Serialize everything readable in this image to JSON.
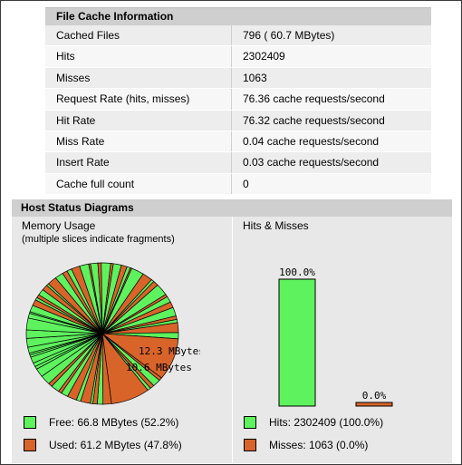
{
  "cache_info": {
    "title": "File Cache Information",
    "rows": [
      {
        "label": "Cached Files",
        "value": "796 ( 60.7 MBytes)"
      },
      {
        "label": "Hits",
        "value": "2302409"
      },
      {
        "label": "Misses",
        "value": "1063"
      },
      {
        "label": "Request Rate (hits, misses)",
        "value": "76.36 cache requests/second"
      },
      {
        "label": "Hit Rate",
        "value": "76.32 cache requests/second"
      },
      {
        "label": "Miss Rate",
        "value": "0.04 cache requests/second"
      },
      {
        "label": "Insert Rate",
        "value": "0.03 cache requests/second"
      },
      {
        "label": "Cache full count",
        "value": "0"
      }
    ]
  },
  "host_status": {
    "title": "Host Status Diagrams",
    "memory": {
      "title": "Memory Usage",
      "subtitle": "(multiple slices indicate fragments)",
      "label_large_1": "12.3 MBytes",
      "label_large_2": "10.6 MBytes",
      "legend_free": "Free: 66.8 MBytes (52.2%)",
      "legend_used": "Used: 61.2 MBytes (47.8%)",
      "colors": {
        "free": "#5ef25e",
        "used": "#d8642a"
      }
    },
    "hits_misses": {
      "title": "Hits & Misses",
      "legend_hits": "Hits: 2302409 (100.0%)",
      "legend_misses": "Misses: 1063 (0.0%)"
    }
  },
  "chart_data": [
    {
      "type": "pie",
      "title": "Memory Usage",
      "slices": [
        {
          "name": "Free",
          "value": 66.8,
          "percent": 52.2
        },
        {
          "name": "Used",
          "value": 61.2,
          "percent": 47.8
        }
      ],
      "labels": [
        "12.3 MBytes",
        "10.6 MBytes"
      ]
    },
    {
      "type": "bar",
      "title": "Hits & Misses",
      "categories": [
        "Hits",
        "Misses"
      ],
      "values": [
        100.0,
        0.0
      ],
      "value_labels": [
        "100.0%",
        "0.0%"
      ],
      "ylim": [
        0,
        100
      ]
    }
  ]
}
